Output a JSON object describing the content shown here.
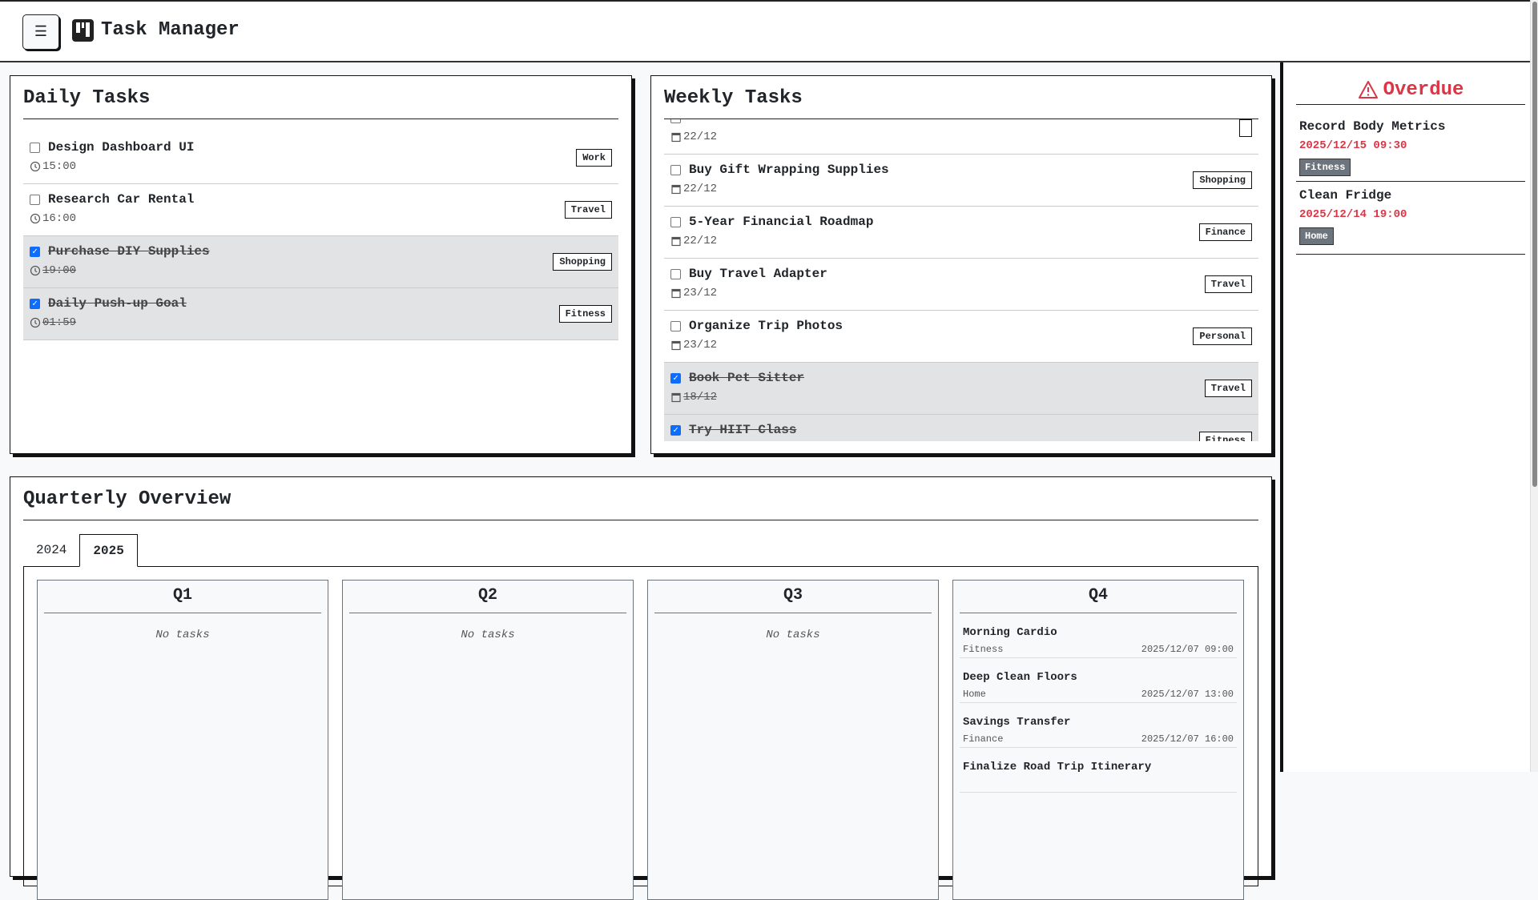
{
  "header": {
    "title": "Task Manager",
    "menu_icon": "☰"
  },
  "daily": {
    "title": "Daily Tasks",
    "items": [
      {
        "title": "Design Dashboard UI",
        "time": "15:00",
        "tag": "Work",
        "done": false
      },
      {
        "title": "Research Car Rental",
        "time": "16:00",
        "tag": "Travel",
        "done": false
      },
      {
        "title": "Purchase DIY Supplies",
        "time": "19:00",
        "tag": "Shopping",
        "done": true
      },
      {
        "title": "Daily Push-up Goal",
        "time": "01:59",
        "tag": "Fitness",
        "done": true
      }
    ]
  },
  "weekly": {
    "title": "Weekly Tasks",
    "items": [
      {
        "title": "",
        "date": "22/12",
        "tag": "",
        "done": false
      },
      {
        "title": "Buy Gift Wrapping Supplies",
        "date": "22/12",
        "tag": "Shopping",
        "done": false
      },
      {
        "title": "5-Year Financial Roadmap",
        "date": "22/12",
        "tag": "Finance",
        "done": false
      },
      {
        "title": "Buy Travel Adapter",
        "date": "23/12",
        "tag": "Travel",
        "done": false
      },
      {
        "title": "Organize Trip Photos",
        "date": "23/12",
        "tag": "Personal",
        "done": false
      },
      {
        "title": "Book Pet Sitter",
        "date": "18/12",
        "tag": "Travel",
        "done": true
      },
      {
        "title": "Try HIIT Class",
        "date": "",
        "tag": "Fitness",
        "done": true
      }
    ]
  },
  "overdue": {
    "title": "Overdue",
    "icon": "warning-icon",
    "color": "#dc3545",
    "items": [
      {
        "title": "Record Body Metrics",
        "due": "2025/12/15 09:30",
        "tag": "Fitness"
      },
      {
        "title": "Clean Fridge",
        "due": "2025/12/14 19:00",
        "tag": "Home"
      }
    ]
  },
  "quarterly": {
    "title": "Quarterly Overview",
    "tabs": [
      {
        "label": "2024",
        "active": false
      },
      {
        "label": "2025",
        "active": true
      }
    ],
    "empty_label": "No tasks",
    "quarters": [
      {
        "label": "Q1",
        "items": []
      },
      {
        "label": "Q2",
        "items": []
      },
      {
        "label": "Q3",
        "items": []
      },
      {
        "label": "Q4",
        "items": [
          {
            "title": "Morning Cardio",
            "category": "Fitness",
            "datetime": "2025/12/07 09:00"
          },
          {
            "title": "Deep Clean Floors",
            "category": "Home",
            "datetime": "2025/12/07 13:00"
          },
          {
            "title": "Savings Transfer",
            "category": "Finance",
            "datetime": "2025/12/07 16:00"
          },
          {
            "title": "Finalize Road Trip Itinerary",
            "category": "",
            "datetime": ""
          }
        ]
      }
    ]
  }
}
